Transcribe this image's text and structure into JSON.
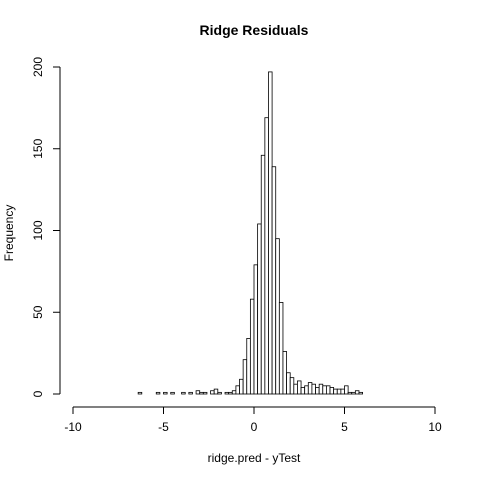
{
  "chart_data": {
    "type": "bar",
    "title": "Ridge Residuals",
    "xlabel": "ridge.pred - yTest",
    "ylabel": "Frequency",
    "xlim": [
      -10,
      10
    ],
    "ylim": [
      0,
      200
    ],
    "bin_width": 0.2,
    "bin_start": -6.4,
    "x_ticks": [
      -10,
      -5,
      0,
      5,
      10
    ],
    "x_tick_labels": [
      "-10",
      "-5",
      "0",
      "5",
      "10"
    ],
    "y_ticks": [
      0,
      50,
      100,
      150,
      200
    ],
    "y_tick_labels": [
      "0",
      "50",
      "100",
      "150",
      "200"
    ],
    "grid": false,
    "values": [
      1,
      0,
      0,
      0,
      0,
      1,
      0,
      1,
      0,
      1,
      0,
      0,
      1,
      0,
      1,
      0,
      2,
      1,
      1,
      0,
      2,
      3,
      1,
      0,
      1,
      1,
      2,
      5,
      9,
      21,
      34,
      58,
      79,
      104,
      146,
      169,
      197,
      139,
      95,
      56,
      26,
      13,
      10,
      6,
      8,
      4,
      5,
      7,
      6,
      4,
      6,
      5,
      5,
      4,
      3,
      3,
      3,
      5,
      1,
      1,
      2,
      1
    ]
  }
}
